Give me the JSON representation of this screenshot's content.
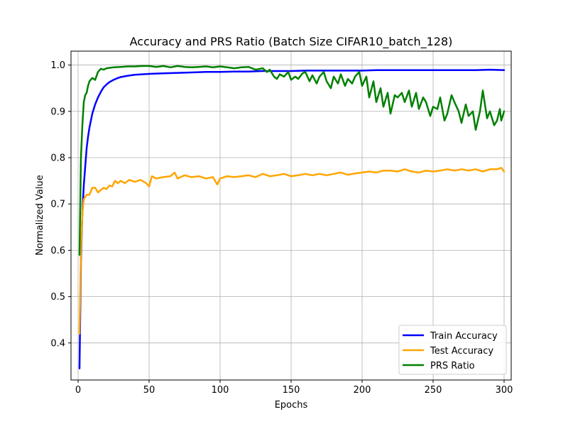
{
  "chart_data": {
    "type": "line",
    "title": "Accuracy and PRS Ratio (Batch Size CIFAR10_batch_128)",
    "xlabel": "Epochs",
    "ylabel": "Normalized Value",
    "xlim": [
      -5,
      305
    ],
    "ylim": [
      0.32,
      1.03
    ],
    "xticks": [
      0,
      50,
      100,
      150,
      200,
      250,
      300
    ],
    "xtick_labels": [
      "0",
      "50",
      "100",
      "150",
      "200",
      "250",
      "300"
    ],
    "yticks": [
      0.4,
      0.5,
      0.6,
      0.7,
      0.8,
      0.9,
      1.0
    ],
    "ytick_labels": [
      "0.4",
      "0.5",
      "0.6",
      "0.7",
      "0.8",
      "0.9",
      "1.0"
    ],
    "grid": true,
    "legend_position": "lower-right",
    "series": [
      {
        "name": "Train Accuracy",
        "color": "#0000ff",
        "x": [
          1,
          2,
          3,
          4,
          5,
          6,
          7,
          8,
          9,
          10,
          12,
          14,
          16,
          18,
          20,
          22,
          25,
          28,
          30,
          35,
          40,
          45,
          50,
          60,
          70,
          80,
          90,
          100,
          110,
          120,
          130,
          140,
          150,
          160,
          170,
          180,
          190,
          200,
          210,
          220,
          230,
          240,
          250,
          260,
          270,
          280,
          290,
          300
        ],
        "values": [
          0.345,
          0.58,
          0.68,
          0.74,
          0.78,
          0.82,
          0.845,
          0.865,
          0.88,
          0.895,
          0.915,
          0.93,
          0.942,
          0.952,
          0.958,
          0.963,
          0.968,
          0.972,
          0.974,
          0.977,
          0.979,
          0.98,
          0.981,
          0.982,
          0.983,
          0.984,
          0.985,
          0.985,
          0.986,
          0.986,
          0.987,
          0.987,
          0.987,
          0.988,
          0.988,
          0.988,
          0.988,
          0.988,
          0.989,
          0.989,
          0.989,
          0.989,
          0.989,
          0.989,
          0.989,
          0.989,
          0.99,
          0.989
        ]
      },
      {
        "name": "Test Accuracy",
        "color": "#ffa500",
        "x": [
          1,
          2,
          3,
          4,
          5,
          6,
          8,
          10,
          12,
          14,
          16,
          18,
          20,
          22,
          24,
          26,
          28,
          30,
          33,
          36,
          40,
          44,
          48,
          50,
          52,
          55,
          60,
          65,
          68,
          70,
          75,
          80,
          85,
          90,
          95,
          98,
          100,
          105,
          110,
          115,
          120,
          125,
          130,
          135,
          140,
          145,
          150,
          155,
          160,
          165,
          170,
          175,
          180,
          185,
          190,
          195,
          200,
          205,
          210,
          215,
          220,
          225,
          230,
          235,
          240,
          245,
          250,
          255,
          260,
          265,
          270,
          275,
          280,
          285,
          290,
          295,
          298,
          300
        ],
        "values": [
          0.42,
          0.6,
          0.68,
          0.71,
          0.715,
          0.72,
          0.72,
          0.735,
          0.735,
          0.725,
          0.73,
          0.735,
          0.732,
          0.74,
          0.738,
          0.75,
          0.745,
          0.75,
          0.745,
          0.752,
          0.748,
          0.752,
          0.745,
          0.738,
          0.76,
          0.755,
          0.758,
          0.76,
          0.768,
          0.755,
          0.762,
          0.758,
          0.76,
          0.755,
          0.758,
          0.742,
          0.755,
          0.76,
          0.758,
          0.76,
          0.762,
          0.758,
          0.765,
          0.76,
          0.762,
          0.765,
          0.76,
          0.762,
          0.765,
          0.762,
          0.765,
          0.762,
          0.765,
          0.768,
          0.763,
          0.766,
          0.768,
          0.77,
          0.768,
          0.772,
          0.772,
          0.77,
          0.775,
          0.77,
          0.768,
          0.772,
          0.77,
          0.772,
          0.775,
          0.772,
          0.775,
          0.772,
          0.775,
          0.77,
          0.775,
          0.775,
          0.778,
          0.77
        ]
      },
      {
        "name": "PRS Ratio",
        "color": "#008000",
        "x": [
          1,
          2,
          3,
          4,
          5,
          6,
          7,
          8,
          10,
          12,
          14,
          16,
          18,
          20,
          25,
          30,
          35,
          40,
          45,
          50,
          55,
          60,
          65,
          70,
          75,
          80,
          85,
          90,
          95,
          100,
          105,
          110,
          115,
          120,
          125,
          130,
          133,
          135,
          138,
          140,
          142,
          145,
          148,
          150,
          153,
          155,
          158,
          160,
          163,
          165,
          168,
          170,
          173,
          175,
          178,
          180,
          183,
          185,
          188,
          190,
          193,
          195,
          198,
          200,
          203,
          205,
          208,
          210,
          213,
          215,
          218,
          220,
          223,
          225,
          228,
          230,
          233,
          235,
          238,
          240,
          243,
          245,
          248,
          250,
          253,
          255,
          258,
          260,
          263,
          265,
          268,
          270,
          273,
          275,
          278,
          280,
          283,
          285,
          288,
          290,
          293,
          295,
          297,
          298,
          300
        ],
        "values": [
          0.59,
          0.8,
          0.87,
          0.92,
          0.935,
          0.94,
          0.955,
          0.965,
          0.972,
          0.968,
          0.985,
          0.992,
          0.99,
          0.993,
          0.995,
          0.996,
          0.997,
          0.997,
          0.998,
          0.998,
          0.996,
          0.998,
          0.995,
          0.998,
          0.996,
          0.995,
          0.996,
          0.997,
          0.995,
          0.997,
          0.995,
          0.993,
          0.995,
          0.996,
          0.99,
          0.993,
          0.985,
          0.99,
          0.975,
          0.97,
          0.98,
          0.975,
          0.985,
          0.968,
          0.975,
          0.97,
          0.982,
          0.985,
          0.965,
          0.978,
          0.96,
          0.975,
          0.985,
          0.965,
          0.95,
          0.975,
          0.96,
          0.98,
          0.955,
          0.97,
          0.96,
          0.975,
          0.985,
          0.955,
          0.975,
          0.93,
          0.965,
          0.92,
          0.95,
          0.91,
          0.94,
          0.895,
          0.935,
          0.93,
          0.94,
          0.92,
          0.945,
          0.91,
          0.94,
          0.905,
          0.93,
          0.92,
          0.89,
          0.91,
          0.905,
          0.93,
          0.88,
          0.895,
          0.935,
          0.92,
          0.9,
          0.875,
          0.915,
          0.89,
          0.9,
          0.86,
          0.9,
          0.945,
          0.885,
          0.9,
          0.87,
          0.88,
          0.905,
          0.88,
          0.9
        ]
      }
    ]
  }
}
